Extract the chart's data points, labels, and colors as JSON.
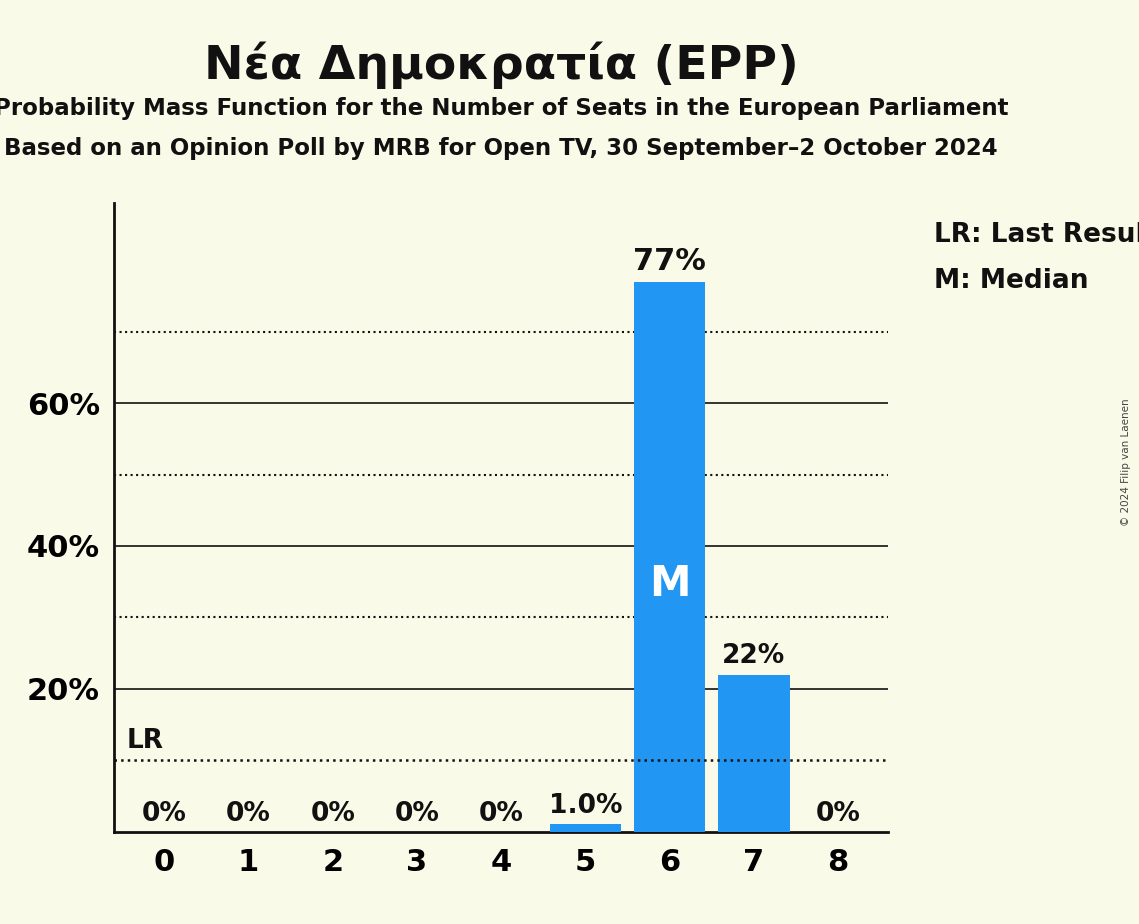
{
  "title": "Νέα Δημοκρατία (EPP)",
  "subtitle1": "Probability Mass Function for the Number of Seats in the European Parliament",
  "subtitle2": "Based on an Opinion Poll by MRB for Open TV, 30 September–2 October 2024",
  "copyright": "© 2024 Filip van Laenen",
  "seats": [
    0,
    1,
    2,
    3,
    4,
    5,
    6,
    7,
    8
  ],
  "probabilities": [
    0.0,
    0.0,
    0.0,
    0.0,
    0.0,
    0.01,
    0.77,
    0.22,
    0.0
  ],
  "bar_labels": [
    "0%",
    "0%",
    "0%",
    "0%",
    "0%",
    "1.0%",
    "77%",
    "22%",
    "0%"
  ],
  "median_seat": 6,
  "median_label": "M",
  "lr_label": "LR",
  "lr_value": 0.1,
  "bar_color": "#2196F3",
  "background_color": "#FAFAE8",
  "text_color": "#111111",
  "legend_text1": "LR: Last Result",
  "legend_text2": "M: Median",
  "ylim": [
    0,
    0.88
  ],
  "ytick_positions": [
    0.0,
    0.2,
    0.4,
    0.6
  ],
  "ytick_labels": [
    "",
    "20%",
    "40%",
    "60%"
  ],
  "dotted_lines": [
    0.1,
    0.3,
    0.5,
    0.7
  ],
  "solid_lines": [
    0.2,
    0.4,
    0.6
  ]
}
